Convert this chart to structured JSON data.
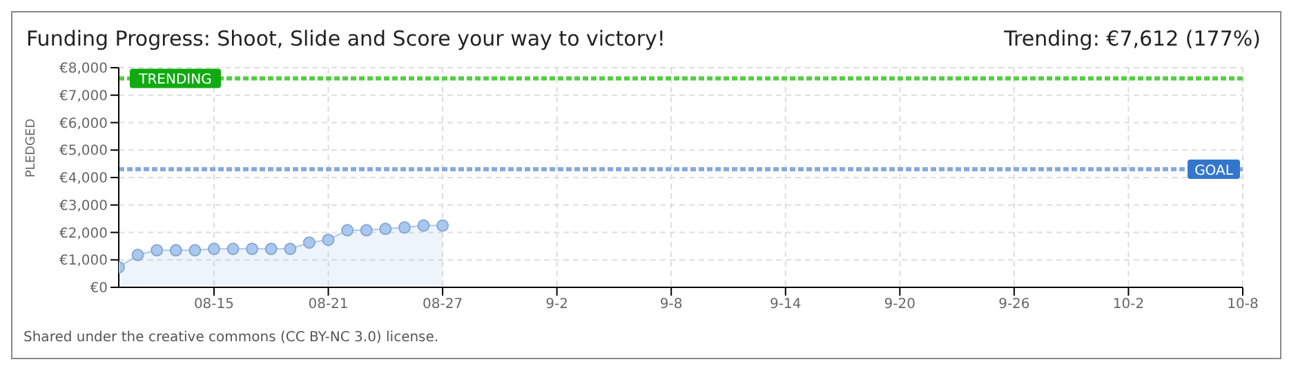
{
  "chart_data": {
    "type": "area",
    "title": "Funding Progress: Shoot, Slide and Score your way to victory!",
    "subtitle": "Trending: €7,612 (177%)",
    "ylabel": "PLEDGED",
    "x": [
      "--08-10",
      "--08-11",
      "--08-12",
      "--08-13",
      "--08-14",
      "--08-15",
      "--08-16",
      "--08-17",
      "--08-18",
      "--08-19",
      "--08-20",
      "--08-21",
      "--08-22",
      "--08-23",
      "--08-24",
      "--08-25",
      "--08-26",
      "--08-27"
    ],
    "series": [
      {
        "color": "#a8c8f0",
        "values": [
          730,
          1180,
          1350,
          1350,
          1350,
          1400,
          1400,
          1400,
          1400,
          1400,
          1630,
          1730,
          2080,
          2080,
          2130,
          2180,
          2250,
          2250
        ]
      }
    ],
    "xlim": [
      "--08-10",
      "--10-08"
    ],
    "xticks": [
      {
        "value": "--08-15",
        "label": "08-15"
      },
      {
        "value": "--08-21",
        "label": "08-21"
      },
      {
        "value": "--08-27",
        "label": "08-27"
      },
      {
        "value": "--09-02",
        "label": "9-2"
      },
      {
        "value": "--09-08",
        "label": "9-8"
      },
      {
        "value": "--09-14",
        "label": "9-14"
      },
      {
        "value": "--09-20",
        "label": "9-20"
      },
      {
        "value": "--09-26",
        "label": "9-26"
      },
      {
        "value": "--10-02",
        "label": "10-2"
      },
      {
        "value": "--10-08",
        "label": "10-8"
      }
    ],
    "ylim": [
      0,
      8000
    ],
    "yticks": [
      {
        "value": 0,
        "label": "€0"
      },
      {
        "value": 1000,
        "label": "€1,000"
      },
      {
        "value": 2000,
        "label": "€2,000"
      },
      {
        "value": 3000,
        "label": "€3,000"
      },
      {
        "value": 4000,
        "label": "€4,000"
      },
      {
        "value": 5000,
        "label": "€5,000"
      },
      {
        "value": 6000,
        "label": "€6,000"
      },
      {
        "value": 7000,
        "label": "€7,000"
      },
      {
        "value": 8000,
        "label": "€8,000"
      }
    ],
    "ref_lines": [
      {
        "axis": "y",
        "value": 7612,
        "label": "TRENDING",
        "color": "#55cc44",
        "line_style": "dashed"
      },
      {
        "axis": "y",
        "value": 4300,
        "label": "GOAL",
        "color": "#88aadd",
        "line_style": "dashed"
      }
    ],
    "grid": true,
    "marker": "circle",
    "annotations": [
      "Shared under the creative commons (CC BY-NC 3.0) license."
    ]
  }
}
